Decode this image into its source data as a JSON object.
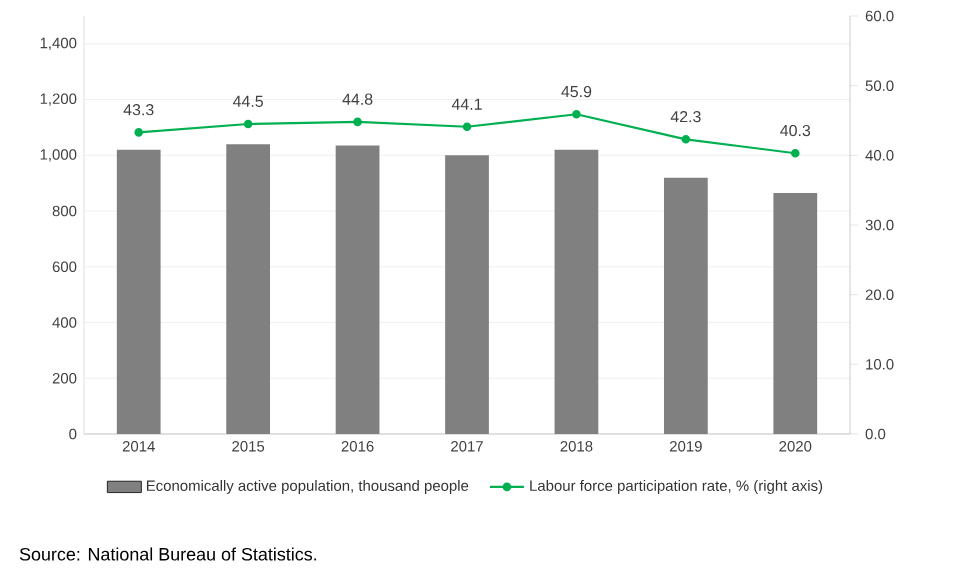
{
  "chart_data": {
    "type": "bar",
    "categories": [
      "2014",
      "2015",
      "2016",
      "2017",
      "2018",
      "2019",
      "2020"
    ],
    "series": [
      {
        "name": "Economically active population, thousand people",
        "color": "#808080",
        "values": [
          1020,
          1040,
          1035,
          1000,
          1020,
          920,
          865
        ]
      },
      {
        "name": "Labour force participation rate, % (right axis)",
        "type": "line",
        "axis": "y2",
        "color": "#00b050",
        "marker": "circle",
        "values": [
          43.3,
          44.5,
          44.8,
          44.1,
          45.9,
          42.3,
          40.3
        ],
        "value_labels": [
          "43.3",
          "44.5",
          "44.8",
          "44.1",
          "45.9",
          "42.3",
          "40.3"
        ]
      }
    ],
    "ylim": [
      0,
      1500
    ],
    "yticks": [
      0,
      200,
      400,
      600,
      800,
      {
        "value": 1000,
        "label": "1,000"
      },
      {
        "value": 1200,
        "label": "1,200"
      },
      {
        "value": 1400,
        "label": "1,400"
      }
    ],
    "y2lim": [
      0,
      60
    ],
    "y2ticks": [
      {
        "value": 0,
        "label": "0.0"
      },
      {
        "value": 10,
        "label": "10.0"
      },
      {
        "value": 20,
        "label": "20.0"
      },
      {
        "value": 30,
        "label": "30.0"
      },
      {
        "value": 40,
        "label": "40.0"
      },
      {
        "value": 50,
        "label": "50.0"
      },
      {
        "value": 60,
        "label": "60.0"
      }
    ],
    "grid": "y",
    "legend": "bottom",
    "annotations": [
      "Source: National Bureau of Statistics."
    ]
  }
}
